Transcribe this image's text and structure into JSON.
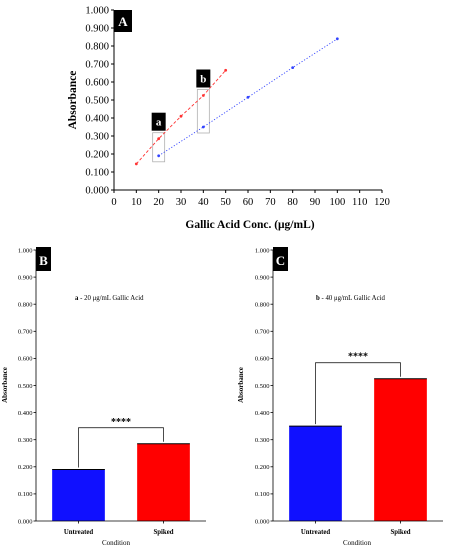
{
  "chart_data": [
    {
      "type": "scatter",
      "panel_label": "A",
      "xlabel": "Gallic Acid Conc. (μg/mL)",
      "ylabel": "Absorbance",
      "xlim": [
        0,
        120
      ],
      "ylim": [
        0,
        1.0
      ],
      "x_ticks": [
        "0",
        "10",
        "20",
        "30",
        "40",
        "50",
        "60",
        "70",
        "80",
        "90",
        "100",
        "110",
        "120"
      ],
      "y_ticks": [
        "0.000",
        "0.100",
        "0.200",
        "0.300",
        "0.400",
        "0.500",
        "0.600",
        "0.700",
        "0.800",
        "0.900",
        "1.000"
      ],
      "series": [
        {
          "color": "#ff3333",
          "line_style": "dashed",
          "points": [
            {
              "x": 10,
              "y": 0.145
            },
            {
              "x": 20,
              "y": 0.285
            },
            {
              "x": 30,
              "y": 0.41
            },
            {
              "x": 40,
              "y": 0.525
            },
            {
              "x": 50,
              "y": 0.665
            }
          ]
        },
        {
          "color": "#3344ff",
          "line_style": "dotted",
          "points": [
            {
              "x": 20,
              "y": 0.19
            },
            {
              "x": 40,
              "y": 0.35
            },
            {
              "x": 60,
              "y": 0.515
            },
            {
              "x": 80,
              "y": 0.68
            },
            {
              "x": 100,
              "y": 0.84
            }
          ]
        }
      ],
      "annotations": [
        {
          "label": "a",
          "x": 20
        },
        {
          "label": "b",
          "x": 40
        }
      ]
    },
    {
      "type": "bar",
      "panel_label": "B",
      "subtitle_tag": "a",
      "subtitle": " - 20 μg/mL Gallic Acid",
      "xlabel": "Condition",
      "ylabel": "Absorbance",
      "ylim": [
        0,
        1.0
      ],
      "y_ticks": [
        "0.000",
        "0.100",
        "0.200",
        "0.300",
        "0.400",
        "0.500",
        "0.600",
        "0.700",
        "0.800",
        "0.900",
        "1.000"
      ],
      "categories": [
        "Untreated",
        "Spiked"
      ],
      "values": [
        0.19,
        0.285
      ],
      "colors": [
        "#1010ff",
        "#ff0000"
      ],
      "significance": "****"
    },
    {
      "type": "bar",
      "panel_label": "C",
      "subtitle_tag": "b",
      "subtitle": " - 40 μg/mL Gallic Acid",
      "xlabel": "Condition",
      "ylabel": "Absorbance",
      "ylim": [
        0,
        1.0
      ],
      "y_ticks": [
        "0.000",
        "0.100",
        "0.200",
        "0.300",
        "0.400",
        "0.500",
        "0.600",
        "0.700",
        "0.800",
        "0.900",
        "1.000"
      ],
      "categories": [
        "Untreated",
        "Spiked"
      ],
      "values": [
        0.35,
        0.525
      ],
      "colors": [
        "#1010ff",
        "#ff0000"
      ],
      "significance": "****"
    }
  ]
}
